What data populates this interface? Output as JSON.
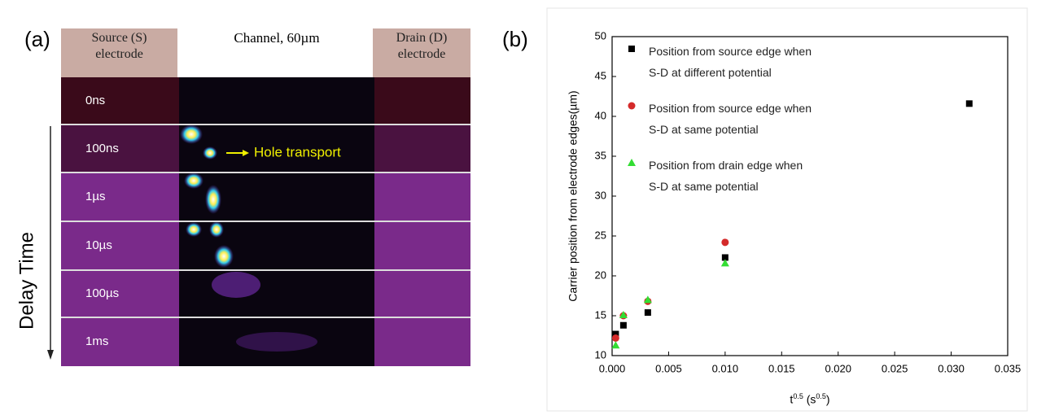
{
  "panel_a": {
    "label": "(a)",
    "source": "Source (S)\nelectrode",
    "channel": "Channel,  60µm",
    "drain": "Drain (D)\nelectrode",
    "delays": [
      "0ns",
      "100ns",
      "1µs",
      "10µs",
      "100µs",
      "1ms"
    ],
    "annotation": "Hole transport",
    "axis": "Delay Time"
  },
  "panel_b": {
    "label": "(b)"
  },
  "chart_data": {
    "type": "scatter",
    "ylabel": "Carrier position from electrode edges(µm)",
    "xlabel": [
      "t",
      "0.5",
      " (s",
      "0.5",
      ")"
    ],
    "xlim": [
      0,
      0.035
    ],
    "xticks": [
      {
        "value": 0,
        "label": "0.000"
      },
      {
        "value": 0.005,
        "label": "0.005"
      },
      {
        "value": 0.01,
        "label": "0.010"
      },
      {
        "value": 0.015,
        "label": "0.015"
      },
      {
        "value": 0.02,
        "label": "0.020"
      },
      {
        "value": 0.025,
        "label": "0.025"
      },
      {
        "value": 0.03,
        "label": "0.030"
      },
      {
        "value": 0.035,
        "label": "0.035"
      }
    ],
    "ylim": [
      10,
      50
    ],
    "yticks": [
      10,
      15,
      20,
      25,
      30,
      35,
      40,
      45,
      50
    ],
    "series": [
      {
        "name": "Position from source edge when\nS-D at different potential",
        "color": "#000000",
        "marker": "square",
        "x": [
          0.000316,
          0.001,
          0.00316,
          0.01,
          0.0316
        ],
        "values": [
          12.7,
          13.8,
          15.4,
          22.3,
          41.6
        ]
      },
      {
        "name": "Position from source edge when\nS-D at same potential",
        "color": "#d42a2a",
        "marker": "circle",
        "x": [
          0.000316,
          0.001,
          0.00316,
          0.01
        ],
        "values": [
          12.2,
          15.0,
          16.8,
          24.2
        ]
      },
      {
        "name": "Position from drain edge when\nS-D at same potential",
        "color": "#33dd33",
        "marker": "triangle",
        "x": [
          0.000316,
          0.001,
          0.00316,
          0.01
        ],
        "values": [
          11.3,
          15.1,
          17.0,
          21.6
        ]
      }
    ]
  }
}
